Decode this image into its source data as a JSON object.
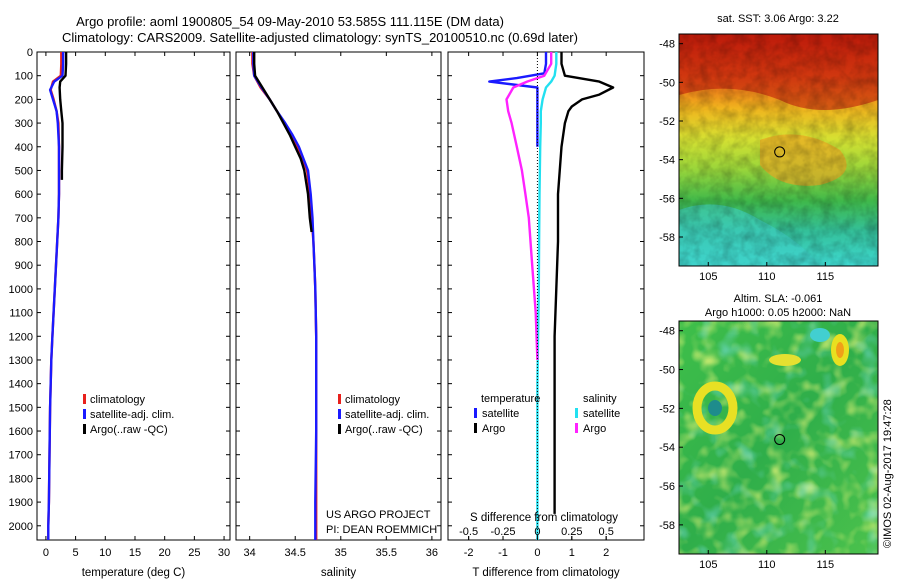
{
  "header": {
    "line1": "Argo profile: aoml 1900805_54 09-May-2010 53.585S 111.115E (DM data)",
    "line2": "Climatology: CARS2009. Satellite-adjusted climatology: synTS_20100510.nc (0.69d later)"
  },
  "credit": {
    "project": "US ARGO PROJECT",
    "pi": "PI: DEAN ROEMMICH",
    "imos": "©IMOS 02-Aug-2017 19:47:28"
  },
  "colors": {
    "climatology": "#e8201c",
    "satellite": "#1a1aff",
    "argo": "#000000",
    "salinity_satellite": "#22e0f0",
    "salinity_argo": "#ff22ff"
  },
  "chart_data": [
    {
      "id": "temperature",
      "type": "line",
      "xlabel": "temperature (deg C)",
      "xlim": [
        -1.5,
        31
      ],
      "ylim": [
        2060,
        0
      ],
      "xticks": [
        0,
        5,
        10,
        15,
        20,
        25,
        30
      ],
      "yticks": [
        0,
        100,
        200,
        300,
        400,
        500,
        600,
        700,
        800,
        900,
        1000,
        1100,
        1200,
        1300,
        1400,
        1500,
        1600,
        1700,
        1800,
        1900,
        2000
      ],
      "legend": [
        "climatology",
        "satellite-adj. clim.",
        "Argo(..raw -QC)"
      ],
      "series": [
        {
          "key": "climatology",
          "color": "#e8201c",
          "x": [
            2.6,
            2.6,
            2.5,
            1.2,
            0.8,
            1.3,
            1.8,
            2.1,
            2.2,
            2.2,
            2.2,
            2.1,
            1.9,
            1.7,
            1.5,
            1.3,
            1.1,
            0.9,
            0.8,
            0.7,
            0.6,
            0.5,
            0.4,
            0.4
          ],
          "y": [
            0,
            50,
            100,
            125,
            160,
            200,
            250,
            300,
            400,
            500,
            600,
            700,
            800,
            900,
            1000,
            1100,
            1200,
            1300,
            1400,
            1500,
            1700,
            1900,
            2000,
            2060
          ]
        },
        {
          "key": "satellite",
          "color": "#1a1aff",
          "x": [
            2.9,
            2.9,
            2.8,
            1.4,
            0.7,
            1.2,
            1.8,
            2.0,
            2.2,
            2.2,
            2.2,
            2.1,
            1.9,
            1.7,
            1.5,
            1.3,
            1.1,
            0.9,
            0.8,
            0.7,
            0.6,
            0.5,
            0.4,
            0.4
          ],
          "y": [
            0,
            50,
            100,
            125,
            160,
            200,
            250,
            300,
            400,
            500,
            600,
            700,
            800,
            900,
            1000,
            1100,
            1200,
            1300,
            1400,
            1500,
            1700,
            1900,
            2000,
            2060
          ]
        },
        {
          "key": "argo",
          "color": "#000000",
          "x": [
            3.4,
            3.4,
            3.3,
            2.4,
            2.3,
            2.4,
            2.6,
            2.8,
            2.8,
            2.7,
            2.7
          ],
          "y": [
            0,
            50,
            100,
            125,
            150,
            200,
            250,
            300,
            400,
            500,
            540
          ]
        }
      ]
    },
    {
      "id": "salinity",
      "type": "line",
      "xlabel": "salinity",
      "xlim": [
        33.85,
        36.1
      ],
      "ylim": [
        2060,
        0
      ],
      "xticks": [
        34,
        34.5,
        35,
        35.5,
        36
      ],
      "xticklabels": [
        "34",
        "34.5",
        "35",
        "35.5",
        "36"
      ],
      "legend": [
        "climatology",
        "satellite-adj. clim.",
        "Argo(..raw -QC)"
      ],
      "series": [
        {
          "key": "climatology",
          "color": "#e8201c",
          "x": [
            34.03,
            34.03,
            34.05,
            34.12,
            34.22,
            34.3,
            34.38,
            34.45,
            34.52,
            34.58,
            34.63,
            34.66,
            34.68,
            34.7,
            34.71,
            34.72,
            34.73,
            34.73,
            34.73,
            34.73,
            34.73
          ],
          "y": [
            0,
            50,
            100,
            150,
            200,
            250,
            300,
            350,
            400,
            450,
            500,
            600,
            700,
            800,
            900,
            1000,
            1200,
            1400,
            1600,
            1900,
            2060
          ]
        },
        {
          "key": "satellite",
          "color": "#1a1aff",
          "x": [
            34.04,
            34.04,
            34.05,
            34.13,
            34.22,
            34.3,
            34.39,
            34.47,
            34.54,
            34.59,
            34.64,
            34.67,
            34.69,
            34.7,
            34.71,
            34.72,
            34.73,
            34.73,
            34.73,
            34.72,
            34.72
          ],
          "y": [
            0,
            50,
            100,
            150,
            200,
            250,
            300,
            350,
            400,
            450,
            500,
            600,
            700,
            800,
            900,
            1000,
            1200,
            1400,
            1600,
            1900,
            2060
          ]
        },
        {
          "key": "argo",
          "color": "#000000",
          "x": [
            34.05,
            34.05,
            34.06,
            34.14,
            34.22,
            34.3,
            34.37,
            34.44,
            34.5,
            34.56,
            34.6,
            34.64,
            34.66,
            34.68
          ],
          "y": [
            0,
            50,
            100,
            150,
            200,
            250,
            300,
            350,
            400,
            450,
            500,
            600,
            700,
            760
          ]
        }
      ]
    },
    {
      "id": "difference",
      "type": "line",
      "xlabel": "T difference from climatology",
      "x2label": "S difference from climatology",
      "xlim": [
        -2.6,
        3.1
      ],
      "ylim": [
        2060,
        0
      ],
      "xticks": [
        -2,
        -1,
        0,
        1,
        2
      ],
      "s_xticks": [
        -0.5,
        -0.25,
        0,
        0.25,
        0.5
      ],
      "s_xticklabels": [
        "-0.5",
        "-0.25",
        "0",
        "0.25",
        "0.5"
      ],
      "legend": {
        "temperature_title": "temperature",
        "salinity_title": "salinity",
        "satellite": "satellite",
        "argo": "Argo"
      },
      "series": [
        {
          "key": "temp_satellite",
          "color": "#1a1aff",
          "x": [
            0.25,
            0.25,
            0.2,
            -0.6,
            -1.4,
            0,
            0,
            0,
            0,
            0,
            0
          ],
          "y": [
            0,
            50,
            90,
            110,
            125,
            150,
            200,
            250,
            300,
            350,
            400
          ]
        },
        {
          "key": "temp_argo",
          "color": "#000000",
          "x": [
            0.7,
            0.7,
            0.8,
            1.8,
            2.2,
            1.8,
            1.3,
            1.0,
            0.9,
            0.8,
            0.7,
            0.6,
            0.6,
            0.55,
            0.5,
            0.5,
            0.5,
            0.5,
            0.5
          ],
          "y": [
            0,
            50,
            100,
            125,
            150,
            180,
            200,
            230,
            250,
            300,
            400,
            600,
            800,
            1000,
            1200,
            1400,
            1600,
            1800,
            1950
          ]
        },
        {
          "key": "sal_satellite",
          "color": "#22e0f0",
          "x": [
            0.55,
            0.55,
            0.5,
            0.4,
            0.25,
            0.15,
            0.1,
            0.1,
            0.08,
            0.06,
            0.05,
            0.04,
            0.02,
            0,
            0,
            0
          ],
          "y": [
            0,
            50,
            100,
            125,
            150,
            200,
            250,
            300,
            400,
            600,
            800,
            1000,
            1200,
            1400,
            1700,
            2060
          ]
        },
        {
          "key": "sal_argo",
          "color": "#ff22ff",
          "x": [
            0.4,
            0.4,
            0.2,
            -0.3,
            -0.7,
            -0.9,
            -0.85,
            -0.75,
            -0.6,
            -0.45,
            -0.35,
            -0.25,
            -0.15,
            -0.05,
            0
          ],
          "y": [
            0,
            50,
            100,
            125,
            150,
            200,
            250,
            300,
            400,
            500,
            600,
            700,
            900,
            1100,
            1300
          ]
        }
      ]
    },
    {
      "id": "sst_map",
      "type": "heatmap",
      "title": "sat. SST: 3.06 Argo: 3.22",
      "xticks": [
        105,
        110,
        115
      ],
      "yticks": [
        -48,
        -50,
        -52,
        -54,
        -56,
        -58
      ],
      "xlim": [
        102.5,
        119.5
      ],
      "ylim": [
        -59.5,
        -47.5
      ],
      "marker": {
        "lon": 111.1,
        "lat": -53.6
      }
    },
    {
      "id": "sla_map",
      "type": "heatmap",
      "title": "Altim. SLA: -0.061",
      "subtitle": "Argo h1000: 0.05 h2000: NaN",
      "xticks": [
        105,
        110,
        115
      ],
      "yticks": [
        -48,
        -50,
        -52,
        -54,
        -56,
        -58
      ],
      "xlim": [
        102.5,
        119.5
      ],
      "ylim": [
        -59.5,
        -47.5
      ],
      "marker": {
        "lon": 111.1,
        "lat": -53.6
      }
    }
  ]
}
